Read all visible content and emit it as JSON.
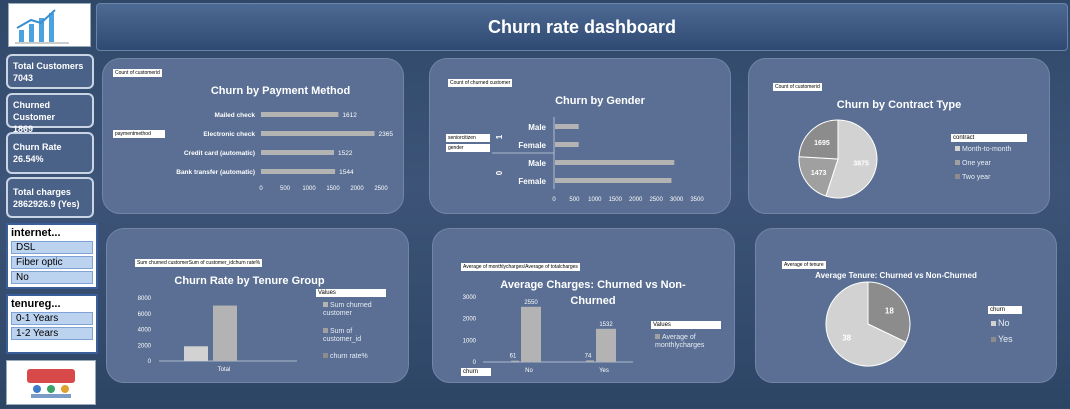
{
  "header": {
    "title": "Churn rate dashboard"
  },
  "kpis": [
    {
      "label": "Total Customers",
      "value": "7043"
    },
    {
      "label": "Churned Customer",
      "value": "1869"
    },
    {
      "label": "Churn Rate",
      "value": "26.54%"
    },
    {
      "label": "Total charges",
      "value": "2862926.9 (Yes)"
    }
  ],
  "slicers": {
    "internet": {
      "title": "internet...",
      "items": [
        "DSL",
        "Fiber optic",
        "No"
      ]
    },
    "tenure": {
      "title": "tenureg...",
      "items": [
        "0-1 Years",
        "1-2 Years"
      ]
    }
  },
  "colors": {
    "bar": "#b3b3b3",
    "pie_dark": "#8c8c8c",
    "pie_light": "#d2d2d2",
    "panel": "#5a6f93"
  },
  "panels": {
    "payment": {
      "field": "Count of customerid",
      "axis_field": "paymentmethod",
      "title": "Churn by Payment Method",
      "categories": [
        "Mailed check",
        "Electronic check",
        "Credit card (automatic)",
        "Bank transfer (automatic)"
      ],
      "values": [
        1612,
        2365,
        1522,
        1544
      ],
      "ticks": [
        "0",
        "500",
        "1000",
        "1500",
        "2000",
        "2500"
      ]
    },
    "gender": {
      "field": "Count of churned customer",
      "axis_fields": [
        "seniorcitizen",
        "gender"
      ],
      "title": "Churn by Gender",
      "groups": [
        "1",
        "0"
      ],
      "categories": [
        "Male",
        "Female",
        "Male",
        "Female"
      ],
      "ticks": [
        "0",
        "500",
        "1000",
        "1500",
        "2000",
        "2500",
        "3000",
        "3500"
      ]
    },
    "contract": {
      "field": "Count of customerid",
      "title": "Churn by Contract Type",
      "legend_title": "contract",
      "legend": [
        "Month-to-month",
        "One year",
        "Two year"
      ],
      "labels": [
        "3875",
        "1473",
        "1695"
      ]
    },
    "tenure": {
      "field": "Sum churned customerSum of customer_idchurn rate%",
      "title": "Churn Rate by Tenure Group",
      "legend_title": "Values",
      "legend": [
        "Sum churned customer",
        "Sum of customer_id",
        "churn rate%"
      ],
      "ticks": [
        "8000",
        "6000",
        "4000",
        "2000",
        "0"
      ],
      "category": "Total"
    },
    "charges": {
      "field": "Average of monthlycharges/Average of totalcharges",
      "title": "Average Charges: Churned vs Non-Churned",
      "legend_title": "Values",
      "legend": [
        "Average of monthlycharges"
      ],
      "axis_field": "churn",
      "ticks": [
        "3000",
        "2000",
        "1000",
        "0"
      ],
      "categories": [
        "No",
        "Yes"
      ],
      "labels": [
        "61",
        "2550",
        "74",
        "1532"
      ]
    },
    "avgtenure": {
      "field": "Average of tenure",
      "title": "Average Tenure: Churned vs Non-Churned",
      "legend_title": "churn",
      "legend": [
        "No",
        "Yes"
      ],
      "labels": [
        "18",
        "38"
      ]
    }
  },
  "chart_data": [
    {
      "type": "bar",
      "title": "Churn by Payment Method",
      "categories": [
        "Mailed check",
        "Electronic check",
        "Credit card (automatic)",
        "Bank transfer (automatic)"
      ],
      "values": [
        1612,
        2365,
        1522,
        1544
      ],
      "xlim": [
        0,
        2500
      ]
    },
    {
      "type": "bar",
      "title": "Churn by Gender",
      "categories": [
        "1 Male",
        "1 Female",
        "0 Male",
        "0 Female"
      ],
      "values": [
        580,
        580,
        2920,
        2850
      ],
      "xlim": [
        0,
        3500
      ]
    },
    {
      "type": "pie",
      "title": "Churn by Contract Type",
      "categories": [
        "Month-to-month",
        "One year",
        "Two year"
      ],
      "values": [
        3875,
        1473,
        1695
      ]
    },
    {
      "type": "bar",
      "title": "Churn Rate by Tenure Group",
      "categories": [
        "Total"
      ],
      "series": [
        {
          "name": "Sum churned customer",
          "values": [
            1869
          ]
        },
        {
          "name": "Sum of customer_id",
          "values": [
            7043
          ]
        },
        {
          "name": "churn rate%",
          "values": [
            0
          ]
        }
      ],
      "ylim": [
        0,
        8000
      ]
    },
    {
      "type": "bar",
      "title": "Average Charges: Churned vs Non-Churned",
      "categories": [
        "No",
        "Yes"
      ],
      "series": [
        {
          "name": "Average of monthlycharges",
          "values": [
            61,
            74
          ]
        },
        {
          "name": "Average of totalcharges",
          "values": [
            2550,
            1532
          ]
        }
      ],
      "ylim": [
        0,
        3000
      ]
    },
    {
      "type": "pie",
      "title": "Average Tenure: Churned vs Non-Churned",
      "categories": [
        "No",
        "Yes"
      ],
      "values": [
        38,
        18
      ]
    }
  ]
}
